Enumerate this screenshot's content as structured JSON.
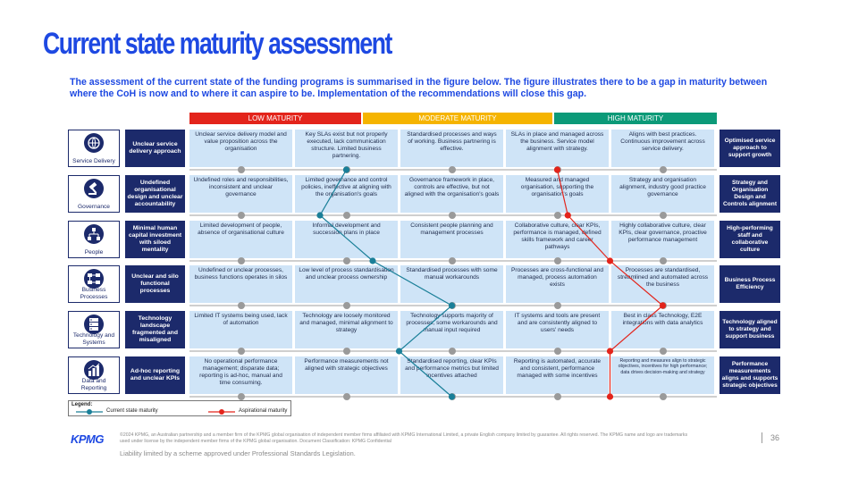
{
  "title": "Current state maturity assessment",
  "intro": "The assessment of the current state of the funding programs is summarised in the figure below. The figure illustrates there to be a gap in maturity between where the CoH is now and to where it can aspire to be. Implementation of the recommendations will close this gap.",
  "bands": [
    {
      "label": "LOW MATURITY",
      "color": "#e3241b"
    },
    {
      "label": "MODERATE MATURITY",
      "color": "#f5b400"
    },
    {
      "label": "HIGH MATURITY",
      "color": "#0c9a78"
    }
  ],
  "rows": [
    {
      "category": "Service Delivery",
      "icon": "service-delivery-icon",
      "issue": "Unclear service delivery approach",
      "levels": [
        "Unclear service delivery model and value proposition across the organisation",
        "Key SLAs exist but not properly executed, lack communication structure. Limited business partnering.",
        "Standardised processes and ways of working. Business partnering is effective.",
        "SLAs in place and managed across the business. Service model alignment with strategy.",
        "Aligns with best practices. Continuous improvement across service delivery."
      ],
      "outcome": "Optimised service approach to support growth",
      "current_level": 2,
      "aspirational_level": 4
    },
    {
      "category": "Governance",
      "icon": "gavel-icon",
      "issue": "Undefined organisational design and unclear accountability",
      "levels": [
        "Undefined roles and responsibilities, inconsistent and unclear governance",
        "Limited governance and control policies, ineffective at aligning with the organisation's goals",
        "Governance framework in place, controls are effective, but not aligned with the organisation's goals",
        "Measured and managed organisation, supporting the organisation's goals",
        "Strategy and organisation alignment, industry good practice governance"
      ],
      "outcome": "Strategy and Organisation Design and Controls alignment",
      "current_level": 1.75,
      "aspirational_level": 4.1
    },
    {
      "category": "People",
      "icon": "org-chart-icon",
      "issue": "Minimal human capital investment with siloed mentality",
      "levels": [
        "Limited development of people, absence of organisational culture",
        "Informal development and succession plans in place",
        "Consistent people planning and management processes",
        "Collaborative culture, clear KPIs, performance is managed, defined skills framework and career pathways",
        "Highly collaborative culture, clear KPIs, clear governance, proactive performance management"
      ],
      "outcome": "High-performing staff and collaborative culture",
      "current_level": 2.25,
      "aspirational_level": 4.5
    },
    {
      "category": "Business Processes",
      "icon": "process-icon",
      "issue": "Unclear and silo functional processes",
      "levels": [
        "Undefined or unclear processes, business functions operates in silos",
        "Low level of process standardisation and unclear process ownership",
        "Standardised processes with some manual workarounds",
        "Processes are cross-functional and managed, process automation exists",
        "Processes are standardised, streamlined and automated across the business"
      ],
      "outcome": "Business Process Efficiency",
      "current_level": 3,
      "aspirational_level": 5
    },
    {
      "category": "Technology and Systems",
      "icon": "server-icon",
      "issue": "Technology landscape fragmented and misaligned",
      "levels": [
        "Limited IT systems being used, lack of automation",
        "Technology are loosely monitored and managed, minimal alignment to strategy",
        "Technology supports majority of processes, some workarounds and manual input required",
        "IT systems and tools are present and are consistently aligned to users' needs",
        "Best in class Technology, E2E integrations with data analytics"
      ],
      "outcome": "Technology aligned to strategy and support business",
      "current_level": 2.5,
      "aspirational_level": 4.5
    },
    {
      "category": "Data and Reporting",
      "icon": "bar-chart-icon",
      "issue": "Ad-hoc reporting and unclear KPIs",
      "levels": [
        "No operational performance management; disparate data; reporting is ad-hoc, manual and time consuming.",
        "Performance measurements not aligned with strategic objectives",
        "Standardised reporting, clear KPIs and performance metrics but limited incentives attached",
        "Reporting is automated, accurate and consistent, performance managed with some incentives",
        "Reporting and measures align to strategic objectives, incentives for high performance; data drives decision-making and strategy"
      ],
      "outcome": "Performance measurements aligns and supports strategic objectives",
      "current_level": 3,
      "aspirational_level": 4.5
    }
  ],
  "legend": {
    "title": "Legend:",
    "current": "Current state maturity",
    "aspirational": "Aspirational maturity",
    "current_color": "#1a7f98",
    "aspirational_color": "#e3241b"
  },
  "footer": {
    "logo": "KPMG",
    "note": "©2024 KPMG, an Australian partnership and a member firm of the KPMG global organisation of independent member firms affiliated with KPMG International Limited, a private English company limited by guarantee. All rights reserved. The KPMG name and logo are trademarks used under license by the independent member firms of the KPMG global organisation. Document Classification: KPMG Confidential",
    "liability": "Liability limited by a scheme approved under Professional Standards Legislation.",
    "page": "36"
  }
}
